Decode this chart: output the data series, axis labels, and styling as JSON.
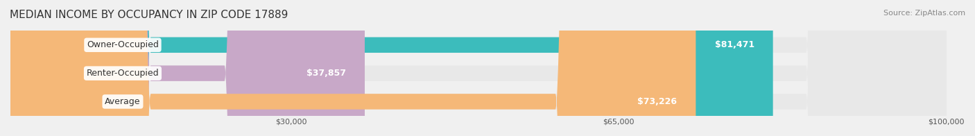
{
  "title": "MEDIAN INCOME BY OCCUPANCY IN ZIP CODE 17889",
  "source": "Source: ZipAtlas.com",
  "categories": [
    "Owner-Occupied",
    "Renter-Occupied",
    "Average"
  ],
  "values": [
    81471,
    37857,
    73226
  ],
  "bar_colors": [
    "#3cbcbc",
    "#c8a8c8",
    "#f5b878"
  ],
  "label_colors": [
    "#3cbcbc",
    "#c8a8c8",
    "#f5b878"
  ],
  "value_labels": [
    "$81,471",
    "$37,857",
    "$73,226"
  ],
  "xlim": [
    0,
    100000
  ],
  "xticks": [
    30000,
    65000,
    100000
  ],
  "xtick_labels": [
    "$30,000",
    "$65,000",
    "$100,000"
  ],
  "bar_height": 0.55,
  "figsize": [
    14.06,
    1.96
  ],
  "dpi": 100,
  "bg_color": "#f0f0f0",
  "bar_bg_color": "#e8e8e8",
  "title_fontsize": 11,
  "source_fontsize": 8,
  "label_fontsize": 9,
  "tick_fontsize": 8
}
